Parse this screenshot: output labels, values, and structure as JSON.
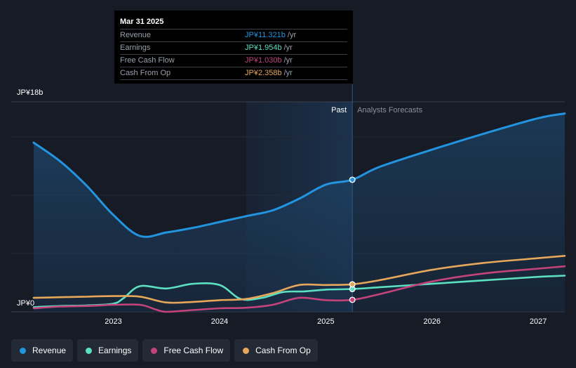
{
  "chart_data": {
    "type": "line",
    "y_axis": {
      "top_label": "JP¥18b",
      "bottom_label": "JP¥0",
      "ylim": [
        0,
        18
      ]
    },
    "x_ticks": [
      "2023",
      "2024",
      "2025",
      "2026",
      "2027"
    ],
    "x_range": [
      2022.25,
      2027.25
    ],
    "divider_x": 2025.25,
    "forecast_band_start": 2024.25,
    "labels": {
      "past": "Past",
      "forecast": "Analysts Forecasts"
    },
    "series": [
      {
        "name": "Revenue",
        "color": "#2394df",
        "fill": true,
        "points": [
          [
            2022.25,
            14.5
          ],
          [
            2022.5,
            12.9
          ],
          [
            2022.75,
            10.8
          ],
          [
            2023.0,
            8.3
          ],
          [
            2023.25,
            6.5
          ],
          [
            2023.5,
            6.8
          ],
          [
            2023.75,
            7.2
          ],
          [
            2024.0,
            7.7
          ],
          [
            2024.25,
            8.2
          ],
          [
            2024.5,
            8.7
          ],
          [
            2024.75,
            9.7
          ],
          [
            2025.0,
            10.9
          ],
          [
            2025.25,
            11.321
          ],
          [
            2025.5,
            12.4
          ],
          [
            2026.0,
            13.9
          ],
          [
            2026.5,
            15.3
          ],
          [
            2027.0,
            16.6
          ],
          [
            2027.25,
            17.0
          ]
        ]
      },
      {
        "name": "Earnings",
        "color": "#5ce0c2",
        "fill": false,
        "points": [
          [
            2022.25,
            0.4
          ],
          [
            2022.5,
            0.5
          ],
          [
            2022.75,
            0.55
          ],
          [
            2023.0,
            0.7
          ],
          [
            2023.1,
            1.2
          ],
          [
            2023.25,
            2.2
          ],
          [
            2023.5,
            2.0
          ],
          [
            2023.75,
            2.4
          ],
          [
            2024.0,
            2.3
          ],
          [
            2024.2,
            1.1
          ],
          [
            2024.4,
            1.2
          ],
          [
            2024.6,
            1.7
          ],
          [
            2024.8,
            1.75
          ],
          [
            2025.0,
            1.9
          ],
          [
            2025.25,
            1.954
          ],
          [
            2025.5,
            2.1
          ],
          [
            2026.0,
            2.4
          ],
          [
            2026.5,
            2.7
          ],
          [
            2027.0,
            3.0
          ],
          [
            2027.25,
            3.1
          ]
        ]
      },
      {
        "name": "Free Cash Flow",
        "color": "#c3437a",
        "fill": false,
        "points": [
          [
            2022.25,
            0.3
          ],
          [
            2022.5,
            0.45
          ],
          [
            2022.75,
            0.5
          ],
          [
            2023.0,
            0.6
          ],
          [
            2023.25,
            0.6
          ],
          [
            2023.4,
            0.2
          ],
          [
            2023.5,
            0.0
          ],
          [
            2023.75,
            0.15
          ],
          [
            2024.0,
            0.3
          ],
          [
            2024.25,
            0.35
          ],
          [
            2024.5,
            0.6
          ],
          [
            2024.75,
            1.2
          ],
          [
            2025.0,
            1.0
          ],
          [
            2025.25,
            1.03
          ],
          [
            2025.5,
            1.5
          ],
          [
            2026.0,
            2.6
          ],
          [
            2026.5,
            3.3
          ],
          [
            2027.0,
            3.7
          ],
          [
            2027.25,
            3.9
          ]
        ]
      },
      {
        "name": "Cash From Op",
        "color": "#e7a75a",
        "fill": false,
        "points": [
          [
            2022.25,
            1.2
          ],
          [
            2022.5,
            1.25
          ],
          [
            2022.75,
            1.3
          ],
          [
            2023.0,
            1.35
          ],
          [
            2023.25,
            1.3
          ],
          [
            2023.5,
            0.8
          ],
          [
            2023.75,
            0.85
          ],
          [
            2024.0,
            1.0
          ],
          [
            2024.25,
            1.1
          ],
          [
            2024.5,
            1.6
          ],
          [
            2024.75,
            2.3
          ],
          [
            2025.0,
            2.3
          ],
          [
            2025.25,
            2.358
          ],
          [
            2025.5,
            2.7
          ],
          [
            2026.0,
            3.6
          ],
          [
            2026.5,
            4.2
          ],
          [
            2027.0,
            4.6
          ],
          [
            2027.25,
            4.8
          ]
        ]
      }
    ]
  },
  "tooltip": {
    "date": "Mar 31 2025",
    "rows": [
      {
        "name": "Revenue",
        "value": "JP¥11.321b",
        "unit": "/yr",
        "color": "#2394df"
      },
      {
        "name": "Earnings",
        "value": "JP¥1.954b",
        "unit": "/yr",
        "color": "#5ce0c2"
      },
      {
        "name": "Free Cash Flow",
        "value": "JP¥1.030b",
        "unit": "/yr",
        "color": "#c3437a"
      },
      {
        "name": "Cash From Op",
        "value": "JP¥2.358b",
        "unit": "/yr",
        "color": "#e7a75a"
      }
    ]
  },
  "legend": [
    {
      "label": "Revenue",
      "color": "#2394df"
    },
    {
      "label": "Earnings",
      "color": "#5ce0c2"
    },
    {
      "label": "Free Cash Flow",
      "color": "#c3437a"
    },
    {
      "label": "Cash From Op",
      "color": "#e7a75a"
    }
  ]
}
